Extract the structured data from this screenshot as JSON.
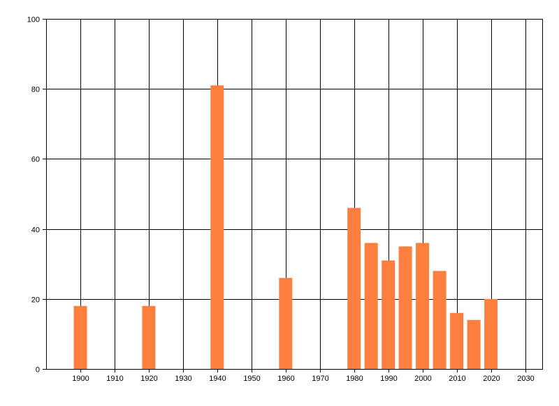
{
  "chart_data": {
    "type": "bar",
    "title": "",
    "xlabel": "",
    "ylabel": "",
    "x_ticks": [
      1900,
      1910,
      1920,
      1930,
      1940,
      1950,
      1960,
      1970,
      1980,
      1990,
      2000,
      2010,
      2020,
      2030
    ],
    "y_ticks": [
      0,
      20,
      40,
      60,
      80,
      100
    ],
    "xlim": [
      1890,
      2035
    ],
    "ylim": [
      0,
      100
    ],
    "grid": true,
    "legend": "none",
    "bar_color": "#ff7f3f",
    "points": [
      {
        "x": 1900,
        "y": 18
      },
      {
        "x": 1920,
        "y": 18
      },
      {
        "x": 1940,
        "y": 81
      },
      {
        "x": 1960,
        "y": 26
      },
      {
        "x": 1980,
        "y": 46
      },
      {
        "x": 1985,
        "y": 36
      },
      {
        "x": 1990,
        "y": 31
      },
      {
        "x": 1995,
        "y": 35
      },
      {
        "x": 2000,
        "y": 36
      },
      {
        "x": 2005,
        "y": 28
      },
      {
        "x": 2010,
        "y": 16
      },
      {
        "x": 2015,
        "y": 14
      },
      {
        "x": 2020,
        "y": 20
      }
    ]
  }
}
